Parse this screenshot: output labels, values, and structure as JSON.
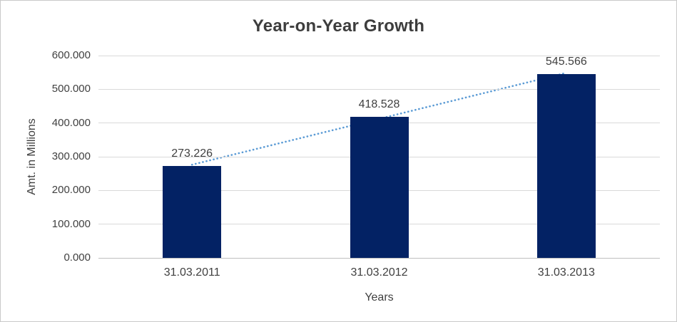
{
  "chart_data": {
    "type": "bar",
    "title": "Year-on-Year Growth",
    "categories": [
      "31.03.2011",
      "31.03.2012",
      "31.03.2013"
    ],
    "values": [
      273.226,
      418.528,
      545.566
    ],
    "data_labels": [
      "273.226",
      "418.528",
      "545.566"
    ],
    "xlabel": "Years",
    "ylabel": "Amt. in Millions",
    "ylim": [
      0,
      600
    ],
    "ytick_step": 100,
    "yticks": [
      "600.000",
      "500.000",
      "400.000",
      "300.000",
      "200.000",
      "100.000",
      "0.000"
    ],
    "grid": "horizontal-only",
    "legend": "none",
    "colors": {
      "bar": "#032264",
      "trendline": "#5B9BD5",
      "gridline": "#d9d9d9",
      "axis_line": "#bfbfbf",
      "text": "#404040",
      "title_text": "#3d3d3d",
      "frame_border": "#c9c9c9"
    },
    "trendline": {
      "type": "linear",
      "style": "dotted",
      "color": "#5B9BD5"
    }
  }
}
